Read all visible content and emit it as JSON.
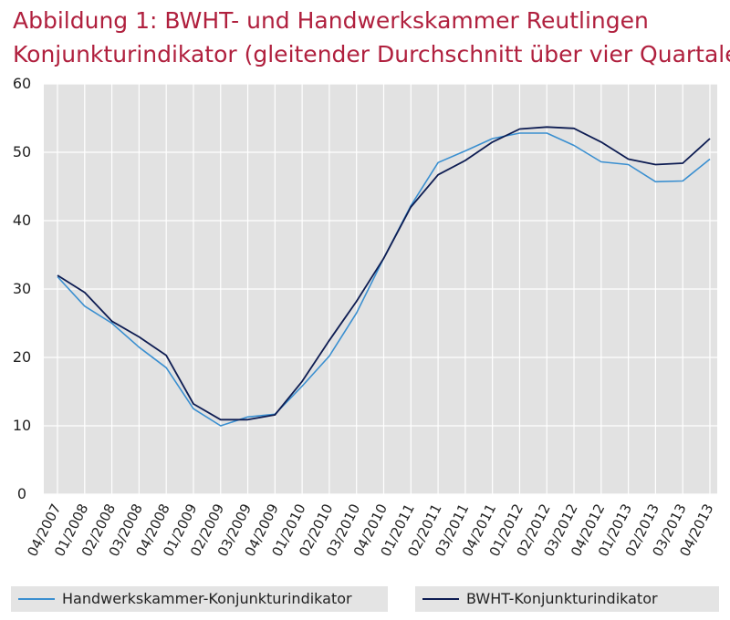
{
  "title_line1": "Abbildung 1: BWHT- und Handwerkskammer  Reutlingen",
  "title_line2": "Konjunkturindikator (gleitender Durchschnitt über vier Quartale)",
  "chart_data": {
    "type": "line",
    "categories": [
      "04/2007",
      "01/2008",
      "02/2008",
      "03/2008",
      "04/2008",
      "01/2009",
      "02/2009",
      "03/2009",
      "04/2009",
      "01/2010",
      "02/2010",
      "03/2010",
      "04/2010",
      "01/2011",
      "02/2011",
      "03/2011",
      "04/2011",
      "01/2012",
      "02/2012",
      "03/2012",
      "04/2012",
      "01/2013",
      "02/2013",
      "03/2013",
      "04/2013"
    ],
    "y_ticks": [
      0,
      10,
      20,
      30,
      40,
      50,
      60
    ],
    "ylim": [
      0,
      60
    ],
    "grid": true,
    "legend_position": "bottom",
    "series": [
      {
        "name": "Handwerkskammer-Konjunkturindikator",
        "color": "#3a8fd0",
        "values": [
          31.8,
          27.5,
          25.0,
          21.5,
          18.5,
          12.5,
          10.0,
          11.3,
          11.7,
          15.8,
          20.2,
          26.5,
          34.5,
          42.2,
          48.5,
          50.2,
          52.0,
          52.8,
          52.8,
          51.0,
          48.6,
          48.2,
          45.7,
          45.8,
          49.0
        ]
      },
      {
        "name": "BWHT-Konjunkturindikator",
        "color": "#0d1c52",
        "values": [
          32.0,
          29.5,
          25.3,
          23.0,
          20.3,
          13.2,
          10.9,
          10.9,
          11.6,
          16.5,
          22.5,
          28.2,
          34.5,
          42.0,
          46.7,
          48.8,
          51.5,
          53.4,
          53.7,
          53.5,
          51.5,
          49.0,
          48.2,
          48.4,
          52.0
        ]
      }
    ]
  }
}
